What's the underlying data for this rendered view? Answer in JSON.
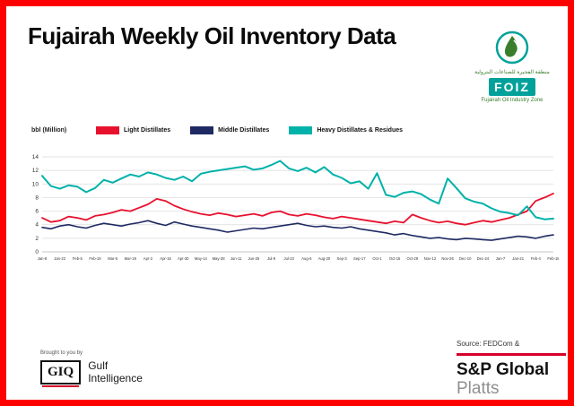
{
  "page": {
    "title": "Fujairah Weekly Oil Inventory Data"
  },
  "foiz_logo": {
    "arabic": "منطقة الفجيرة للصناعات البترولية",
    "acronym": "FOIZ",
    "tagline": "Fujairah Oil Industry Zone",
    "green": "#3a7d2c",
    "teal": "#00a19a"
  },
  "footer": {
    "brought_by": "Brought to you by",
    "giq": "GIQ",
    "gulf_line1": "Gulf",
    "gulf_line2": "Intelligence",
    "source": "Source: FEDCom &",
    "sp_global": "S&P Global",
    "platts": "Platts",
    "accent_red": "#d6002a"
  },
  "chart_data": {
    "type": "line",
    "title": "Fujairah Weekly Oil Inventory Data",
    "ylabel": "bbl (Million)",
    "xlabel": "",
    "ylim": [
      0,
      14
    ],
    "ytick_step": 2,
    "grid": true,
    "legend_position": "top",
    "x": [
      "Jan-8",
      "Jan-15",
      "Jan-22",
      "Jan-29",
      "Feb-5",
      "Feb-12",
      "Feb-19",
      "Feb-26",
      "Mar-5",
      "Mar-12",
      "Mar-19",
      "Mar-26",
      "Apr-2",
      "Apr-9",
      "Apr-16",
      "Apr-23",
      "Apr-30",
      "May-7",
      "May-14",
      "May-21",
      "May-28",
      "Jun-4",
      "Jun-11",
      "Jun-18",
      "Jun-25",
      "Jul-2",
      "Jul-9",
      "Jul-16",
      "Jul-23",
      "Jul-30",
      "Aug-6",
      "Aug-13",
      "Aug-20",
      "Aug-27",
      "Sep-3",
      "Sep-10",
      "Sep-17",
      "Sep-24",
      "Oct-1",
      "Oct-8",
      "Oct-15",
      "Oct-22",
      "Oct-29",
      "Nov-5",
      "Nov-12",
      "Nov-19",
      "Nov-26",
      "Dec-3",
      "Dec-10",
      "Dec-17",
      "Dec-24",
      "Dec-31",
      "Jan-7",
      "Jan-14",
      "Jan-21",
      "Jan-28",
      "Feb-4",
      "Feb-11",
      "Feb-18"
    ],
    "series": [
      {
        "name": "Light Distillates",
        "color": "#e8112d",
        "width": 1.8,
        "values": [
          5.0,
          4.4,
          4.6,
          5.2,
          5.0,
          4.7,
          5.3,
          5.5,
          5.8,
          6.2,
          6.0,
          6.5,
          7.0,
          7.8,
          7.5,
          6.8,
          6.3,
          5.9,
          5.6,
          5.4,
          5.7,
          5.5,
          5.2,
          5.4,
          5.6,
          5.3,
          5.8,
          6.0,
          5.5,
          5.3,
          5.6,
          5.4,
          5.1,
          4.9,
          5.2,
          5.0,
          4.8,
          4.6,
          4.4,
          4.2,
          4.5,
          4.3,
          5.5,
          5.0,
          4.6,
          4.3,
          4.5,
          4.2,
          4.0,
          4.3,
          4.6,
          4.4,
          4.7,
          5.0,
          5.5,
          6.0,
          7.5,
          8.0,
          8.6
        ]
      },
      {
        "name": "Middle Distillates",
        "color": "#1f2a63",
        "width": 1.6,
        "values": [
          3.6,
          3.4,
          3.8,
          4.0,
          3.7,
          3.5,
          3.9,
          4.2,
          4.0,
          3.8,
          4.1,
          4.3,
          4.6,
          4.2,
          3.9,
          4.4,
          4.1,
          3.8,
          3.6,
          3.4,
          3.2,
          2.9,
          3.1,
          3.3,
          3.5,
          3.4,
          3.6,
          3.8,
          4.0,
          4.2,
          3.9,
          3.7,
          3.8,
          3.6,
          3.5,
          3.7,
          3.4,
          3.2,
          3.0,
          2.8,
          2.5,
          2.7,
          2.4,
          2.2,
          2.0,
          2.1,
          1.9,
          1.8,
          2.0,
          1.9,
          1.8,
          1.7,
          1.9,
          2.1,
          2.3,
          2.2,
          2.0,
          2.3,
          2.5
        ]
      },
      {
        "name": "Heavy Distillates & Residues",
        "color": "#00b2a9",
        "width": 2.0,
        "values": [
          11.2,
          9.7,
          9.3,
          9.8,
          9.6,
          8.8,
          9.4,
          10.6,
          10.2,
          10.8,
          11.4,
          11.1,
          11.7,
          11.4,
          10.9,
          10.6,
          11.1,
          10.4,
          11.5,
          11.8,
          12.0,
          12.2,
          12.4,
          12.6,
          12.1,
          12.3,
          12.8,
          13.4,
          12.3,
          11.9,
          12.4,
          11.7,
          12.5,
          11.4,
          10.9,
          10.1,
          10.4,
          9.3,
          11.6,
          8.4,
          8.1,
          8.7,
          8.9,
          8.5,
          7.7,
          7.1,
          10.8,
          9.4,
          7.9,
          7.4,
          7.1,
          6.4,
          5.9,
          5.7,
          5.4,
          6.7,
          5.1,
          4.8,
          4.9
        ]
      }
    ]
  }
}
